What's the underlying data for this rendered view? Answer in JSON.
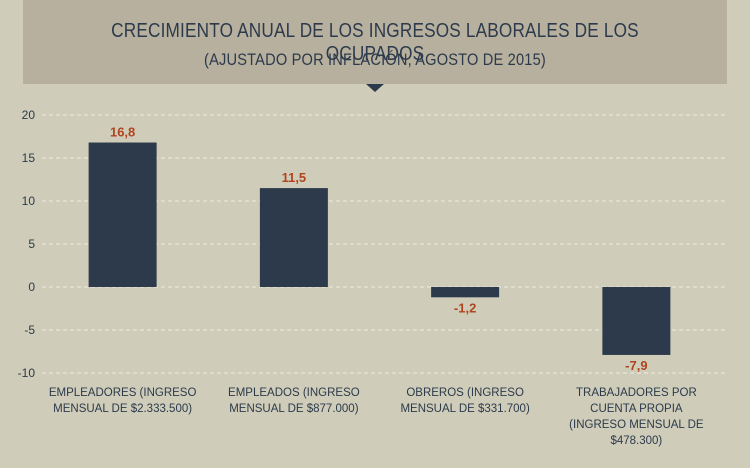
{
  "header": {
    "title": "Crecimiento anual de los ingresos laborales de los ocupados",
    "subtitle": "(Ajustado por inflación, agosto de 2015)"
  },
  "colors": {
    "bar": "#2c3a4c",
    "data_label": "#b0441f",
    "grid": "#ecebe0",
    "banner": "#b7b09e",
    "background": "#cfcdb9"
  },
  "chart_data": {
    "type": "bar",
    "title": "Crecimiento anual de los ingresos laborales de los ocupados",
    "subtitle": "(Ajustado por inflación, agosto de 2015)",
    "categories": [
      "Empleadores (ingreso mensual de $2.333.500)",
      "Empleados (ingreso mensual de $877.000)",
      "Obreros (ingreso mensual de $331.700)",
      "Trabajadores por cuenta propia (ingreso mensual de $478.300)"
    ],
    "values": [
      16.8,
      11.5,
      -1.2,
      -7.9
    ],
    "value_labels": [
      "16,8",
      "11,5",
      "-1,2",
      "-7,9"
    ],
    "ylim": [
      -10,
      20
    ],
    "yticks": [
      20,
      15,
      10,
      5,
      0,
      -5,
      -10
    ],
    "ytick_labels": [
      "20",
      "15",
      "10",
      "5",
      "0",
      "-5",
      "-10"
    ],
    "grid": true,
    "grid_style": "dashed",
    "xlabel": "",
    "ylabel": ""
  }
}
